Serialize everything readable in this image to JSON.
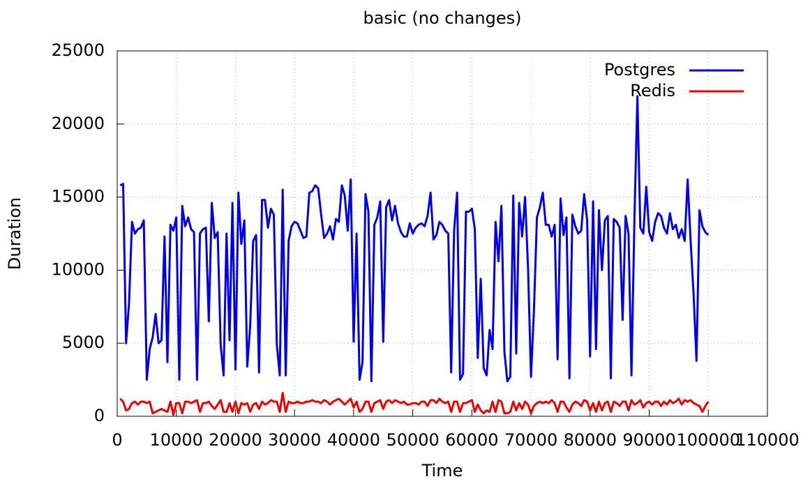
{
  "chart_data": {
    "type": "line",
    "title": "basic (no changes)",
    "x_label": "Time",
    "y_label": "Duration",
    "xlim": [
      0,
      110000
    ],
    "xticks": [
      0,
      10000,
      20000,
      30000,
      40000,
      50000,
      60000,
      70000,
      80000,
      90000,
      100000,
      110000
    ],
    "ylim": [
      0,
      25000
    ],
    "yticks": [
      0,
      5000,
      10000,
      15000,
      20000,
      25000
    ],
    "grid": true,
    "legend": "top-right",
    "x": [
      500,
      1000,
      1500,
      2000,
      2500,
      3000,
      3500,
      4000,
      4500,
      5000,
      5500,
      6000,
      6500,
      7000,
      7500,
      8000,
      8500,
      9000,
      9500,
      10000,
      10500,
      11000,
      11500,
      12000,
      12500,
      13000,
      13500,
      14000,
      14500,
      15000,
      15500,
      16000,
      16500,
      17000,
      17500,
      18000,
      18500,
      19000,
      19500,
      20000,
      20500,
      21000,
      21500,
      22000,
      22500,
      23000,
      23500,
      24000,
      24500,
      25000,
      25500,
      26000,
      26500,
      27000,
      27500,
      28000,
      28500,
      29000,
      29500,
      30000,
      30500,
      31000,
      31500,
      32000,
      32500,
      33000,
      33500,
      34000,
      34500,
      35000,
      35500,
      36000,
      36500,
      37000,
      37500,
      38000,
      38500,
      39000,
      39500,
      40000,
      40500,
      41000,
      41500,
      42000,
      42500,
      43000,
      43500,
      44000,
      44500,
      45000,
      45500,
      46000,
      46500,
      47000,
      47500,
      48000,
      48500,
      49000,
      49500,
      50000,
      50500,
      51000,
      51500,
      52000,
      52500,
      53000,
      53500,
      54000,
      54500,
      55000,
      55500,
      56000,
      56500,
      57000,
      57500,
      58000,
      58500,
      59000,
      59500,
      60000,
      60500,
      61000,
      61500,
      62000,
      62500,
      63000,
      63500,
      64000,
      64500,
      65000,
      65500,
      66000,
      66500,
      67000,
      67500,
      68000,
      68500,
      69000,
      69500,
      70000,
      70500,
      71000,
      71500,
      72000,
      72500,
      73000,
      73500,
      74000,
      74500,
      75000,
      75500,
      76000,
      76500,
      77000,
      77500,
      78000,
      78500,
      79000,
      79500,
      80000,
      80500,
      81000,
      81500,
      82000,
      82500,
      83000,
      83500,
      84000,
      84500,
      85000,
      85500,
      86000,
      86500,
      87000,
      87500,
      88000,
      88500,
      89000,
      89500,
      90000,
      90500,
      91000,
      91500,
      92000,
      92500,
      93000,
      93500,
      94000,
      94500,
      95000,
      95500,
      96000,
      96500,
      97000,
      97500,
      98000,
      98500,
      99000,
      99500,
      100000
    ],
    "series": [
      {
        "name": "Postgres",
        "color": "#0000ee",
        "values": [
          15800,
          15900,
          5000,
          7700,
          13300,
          12500,
          12800,
          12900,
          13400,
          2500,
          4600,
          5400,
          7000,
          5000,
          5200,
          12300,
          3700,
          13100,
          12700,
          13600,
          2500,
          14400,
          13000,
          13600,
          12800,
          12600,
          2500,
          12500,
          12800,
          12900,
          6500,
          14600,
          12200,
          12600,
          4900,
          2800,
          12500,
          5200,
          14600,
          3200,
          15300,
          11800,
          13400,
          3400,
          6200,
          12000,
          12400,
          3000,
          14800,
          14800,
          12900,
          14200,
          13800,
          4900,
          2800,
          15500,
          2800,
          12000,
          13000,
          13300,
          13200,
          12700,
          12200,
          12300,
          15300,
          15400,
          15800,
          15600,
          13800,
          12200,
          12500,
          13000,
          12100,
          13500,
          13300,
          15800,
          15100,
          12700,
          16200,
          5100,
          12500,
          2500,
          3700,
          15200,
          14000,
          2400,
          13100,
          13600,
          14700,
          5100,
          14300,
          14800,
          13400,
          14400,
          13200,
          12600,
          12300,
          12300,
          13200,
          12500,
          12900,
          13100,
          13200,
          13000,
          13700,
          15300,
          12100,
          12400,
          13300,
          13100,
          12700,
          12500,
          3000,
          12700,
          15300,
          2500,
          2900,
          14000,
          14000,
          14200,
          12800,
          4000,
          9400,
          3300,
          2800,
          5900,
          4600,
          13300,
          10600,
          14400,
          4400,
          2400,
          2700,
          15100,
          4300,
          14600,
          12300,
          15000,
          10100,
          2700,
          7200,
          13600,
          14300,
          15300,
          13100,
          13100,
          12300,
          13100,
          3900,
          14900,
          12400,
          13600,
          2600,
          13800,
          13000,
          12500,
          12700,
          15200,
          13400,
          4100,
          14700,
          4600,
          14100,
          10000,
          13400,
          13700,
          2600,
          13500,
          13300,
          12900,
          6600,
          13700,
          12500,
          2800,
          13600,
          21900,
          12900,
          12500,
          15700,
          12600,
          12000,
          13300,
          13900,
          13700,
          12900,
          12500,
          13900,
          12800,
          13100,
          12200,
          12800,
          12000,
          16200,
          12000,
          8400,
          3800,
          14100,
          13000,
          12600,
          12400
        ]
      },
      {
        "name": "Redis",
        "color": "#ee0000",
        "values": [
          1200,
          1000,
          400,
          500,
          900,
          1000,
          800,
          1000,
          1000,
          900,
          1000,
          200,
          300,
          400,
          500,
          400,
          300,
          1000,
          100,
          900,
          900,
          200,
          1000,
          1000,
          900,
          1000,
          1100,
          300,
          900,
          900,
          1000,
          700,
          500,
          800,
          1100,
          300,
          300,
          900,
          300,
          1000,
          200,
          900,
          800,
          900,
          300,
          800,
          900,
          500,
          1000,
          800,
          900,
          1100,
          1000,
          1000,
          300,
          1600,
          300,
          1000,
          900,
          900,
          1000,
          900,
          900,
          1000,
          1000,
          1100,
          1000,
          1000,
          900,
          1100,
          1000,
          800,
          1000,
          1100,
          1200,
          1000,
          800,
          1000,
          1200,
          600,
          1000,
          300,
          500,
          1000,
          1000,
          300,
          900,
          1000,
          1100,
          500,
          1000,
          1100,
          900,
          1100,
          1000,
          900,
          1000,
          800,
          800,
          900,
          900,
          800,
          1000,
          1000,
          700,
          1100,
          1100,
          900,
          1200,
          1000,
          900,
          1000,
          300,
          1000,
          1000,
          300,
          900,
          900,
          1000,
          1100,
          300,
          800,
          400,
          200,
          400,
          300,
          1000,
          300,
          1100,
          1000,
          200,
          200,
          300,
          1000,
          400,
          900,
          500,
          1000,
          800,
          200,
          700,
          900,
          1000,
          900,
          1000,
          900,
          1100,
          900,
          300,
          1000,
          1000,
          600,
          300,
          800,
          1000,
          900,
          700,
          1100,
          1000,
          400,
          900,
          300,
          1000,
          400,
          900,
          1000,
          300,
          1000,
          900,
          700,
          1000,
          1000,
          400,
          1100,
          800,
          900,
          1100,
          600,
          900,
          1000,
          800,
          1000,
          1000,
          700,
          1000,
          800,
          1100,
          900,
          1000,
          1200,
          800,
          1100,
          1000,
          1100,
          900,
          800,
          700,
          300,
          700,
          1000
        ]
      }
    ]
  }
}
